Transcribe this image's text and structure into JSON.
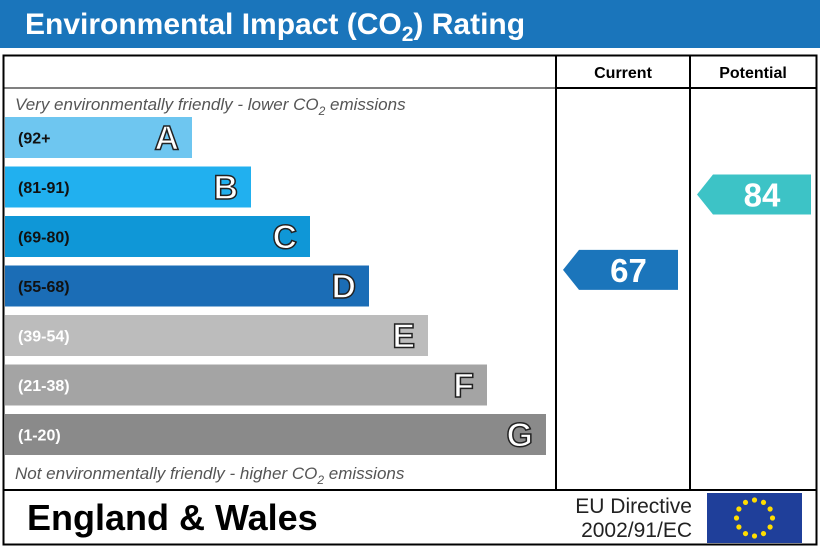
{
  "header": {
    "title": {
      "before": "Environmental Impact (CO",
      "sub": "2",
      "after": ") Rating"
    }
  },
  "columns": {
    "current": "Current",
    "potential": "Potential"
  },
  "top_note": {
    "before": "Very environmentally friendly - lower CO",
    "sub": "2",
    "after": " emissions"
  },
  "bottom_note": {
    "before": "Not environmentally friendly - higher CO",
    "sub": "2",
    "after": " emissions"
  },
  "bands": [
    {
      "range": "(92+",
      "letter": "A",
      "color": "#6ec6f0"
    },
    {
      "range": "(81-91)",
      "letter": "B",
      "color": "#21b0ef"
    },
    {
      "range": "(69-80)",
      "letter": "C",
      "color": "#0f97d7"
    },
    {
      "range": "(55-68)",
      "letter": "D",
      "color": "#1b6db6"
    },
    {
      "range": "(39-54)",
      "letter": "E",
      "color": "#bcbcbc"
    },
    {
      "range": "(21-38)",
      "letter": "F",
      "color": "#a4a4a4"
    },
    {
      "range": "(1-20)",
      "letter": "G",
      "color": "#8a8a8a"
    }
  ],
  "current": {
    "value": 67,
    "color": "#1b75bb"
  },
  "potential": {
    "value": 84,
    "color": "#3dc3c6"
  },
  "footer": {
    "region": "England & Wales",
    "directive_line1": "EU Directive",
    "directive_line2": "2002/91/EC"
  }
}
